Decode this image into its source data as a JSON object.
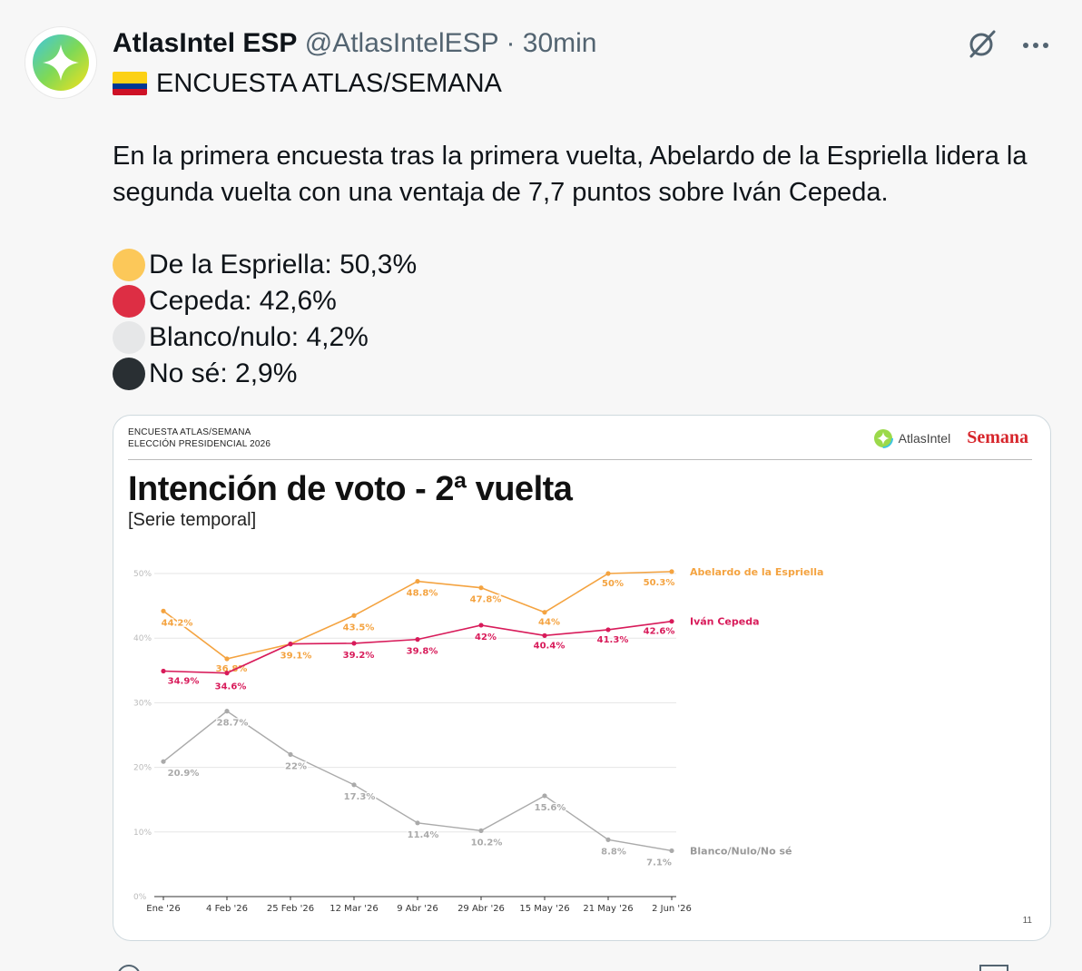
{
  "tweet": {
    "display_name": "AtlasIntel ESP",
    "handle": "@AtlasIntelESP",
    "separator": "·",
    "time": "30min",
    "headline": "ENCUESTA ATLAS/SEMANA",
    "body": "En la primera encuesta tras la primera vuelta, Abelardo de la Espriella lidera la segunda vuelta con una ventaja de 7,7 puntos sobre Iván Cepeda.",
    "bullets": [
      {
        "text": "De la Espriella: 50,3%",
        "color": "#fcc859"
      },
      {
        "text": "Cepeda: 42,6%",
        "color": "#dd2e44"
      },
      {
        "text": "Blanco/nulo: 4,2%",
        "color": "#e6e7e8"
      },
      {
        "text": "No sé: 2,9%",
        "color": "#292f33"
      }
    ],
    "icons": {
      "grok": "grok-icon",
      "more": "more-icon",
      "flag": "colombia-flag-icon"
    }
  },
  "card": {
    "survey_line1": "ENCUESTA ATLAS/SEMANA",
    "survey_line2": "ELECCIÓN PRESIDENCIAL 2026",
    "brand_atlas": "AtlasIntel",
    "brand_semana": "Semana",
    "page_number": "11"
  },
  "chart_data": {
    "type": "line",
    "title": "Intención de voto - 2ª vuelta",
    "subtitle": "[Serie temporal]",
    "categories": [
      "Ene '26",
      "4 Feb '26",
      "25 Feb '26",
      "12 Mar '26",
      "9 Abr '26",
      "29 Abr '26",
      "15 May '26",
      "21 May '26",
      "2 Jun '26"
    ],
    "ylim": [
      0,
      50
    ],
    "yticks": [
      0,
      10,
      20,
      30,
      40,
      50
    ],
    "ytick_labels": [
      "0%",
      "10%",
      "20%",
      "30%",
      "40%",
      "50%"
    ],
    "grid": true,
    "legend": "inline-right",
    "series": [
      {
        "name": "Abelardo de la Espriella",
        "color": "#f4a340",
        "points": [
          {
            "x": 0,
            "v": 44.2,
            "label": "44.2%"
          },
          {
            "x": 1,
            "v": 36.8,
            "label": "36.8%"
          },
          {
            "x": 2,
            "v": 39.1,
            "label": "39.1%"
          },
          {
            "x": 3,
            "v": 43.5,
            "label": "43.5%"
          },
          {
            "x": 4,
            "v": 48.8,
            "label": "48.8%"
          },
          {
            "x": 5,
            "v": 47.8,
            "label": "47.8%"
          },
          {
            "x": 6,
            "v": 44,
            "label": "44%"
          },
          {
            "x": 7,
            "v": 50,
            "label": "50%"
          },
          {
            "x": 8,
            "v": 50.3,
            "label": "50.3%"
          }
        ]
      },
      {
        "name": "Iván Cepeda",
        "color": "#d81b5a",
        "points": [
          {
            "x": 0,
            "v": 34.9,
            "label": "34.9%"
          },
          {
            "x": 1,
            "v": 34.6,
            "label": "34.6%"
          },
          {
            "x": 2,
            "v": 39.1,
            "label": ""
          },
          {
            "x": 3,
            "v": 39.2,
            "label": "39.2%"
          },
          {
            "x": 4,
            "v": 39.8,
            "label": "39.8%"
          },
          {
            "x": 5,
            "v": 42,
            "label": "42%"
          },
          {
            "x": 6,
            "v": 40.4,
            "label": "40.4%"
          },
          {
            "x": 7,
            "v": 41.3,
            "label": "41.3%"
          },
          {
            "x": 8,
            "v": 42.6,
            "label": "42.6%"
          }
        ]
      },
      {
        "name": "Blanco/Nulo/No sé",
        "color": "#aaaaaa",
        "points": [
          {
            "x": 0,
            "v": 20.9,
            "label": "20.9%"
          },
          {
            "x": 1,
            "v": 28.7,
            "label": "28.7%"
          },
          {
            "x": 2,
            "v": 22,
            "label": "22%"
          },
          {
            "x": 3,
            "v": 17.3,
            "label": "17.3%"
          },
          {
            "x": 4,
            "v": 11.4,
            "label": "11.4%"
          },
          {
            "x": 5,
            "v": 10.2,
            "label": "10.2%"
          },
          {
            "x": 6,
            "v": 15.6,
            "label": "15.6%"
          },
          {
            "x": 7,
            "v": 8.8,
            "label": "8.8%"
          },
          {
            "x": 8,
            "v": 7.1,
            "label": "7.1%"
          }
        ]
      }
    ]
  }
}
